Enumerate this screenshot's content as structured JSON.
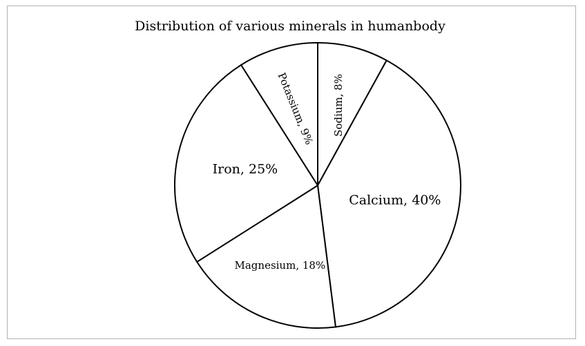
{
  "chart_data": {
    "type": "pie",
    "title": "Distribution  of various minerals in humanbody",
    "slices": [
      {
        "label": "Sodium, 8%",
        "name": "Sodium",
        "value": 8
      },
      {
        "label": "Calcium, 40%",
        "name": "Calcium",
        "value": 40
      },
      {
        "label": "Magnesium, 18%",
        "name": "Magnesium",
        "value": 18
      },
      {
        "label": "Iron, 25%",
        "name": "Iron",
        "value": 25
      },
      {
        "label": "Potassium, 9%",
        "name": "Potassium",
        "value": 9
      }
    ],
    "start_angle_deg": 0,
    "direction": "clockwise",
    "colors": {
      "fill": "#ffffff",
      "stroke": "#000000"
    }
  }
}
